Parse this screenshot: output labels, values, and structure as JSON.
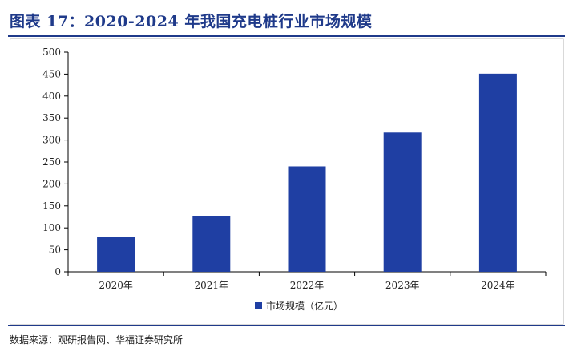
{
  "header": {
    "title": "图表 17：2020-2024 年我国充电桩行业市场规模"
  },
  "footer": {
    "source": "数据来源：观研报告网、华福证券研究所"
  },
  "colors": {
    "bar": "#1f3fa3",
    "accent": "#1f3a8a"
  },
  "chart_data": {
    "type": "bar",
    "categories": [
      "2020年",
      "2021年",
      "2022年",
      "2023年",
      "2024年"
    ],
    "series": [
      {
        "name": "市场规模（亿元）",
        "values": [
          79,
          126,
          240,
          317,
          451
        ]
      }
    ],
    "ylim": [
      0,
      500
    ],
    "yticks": [
      0,
      50,
      100,
      150,
      200,
      250,
      300,
      350,
      400,
      450,
      500
    ],
    "grid": false,
    "legend_position": "bottom"
  }
}
